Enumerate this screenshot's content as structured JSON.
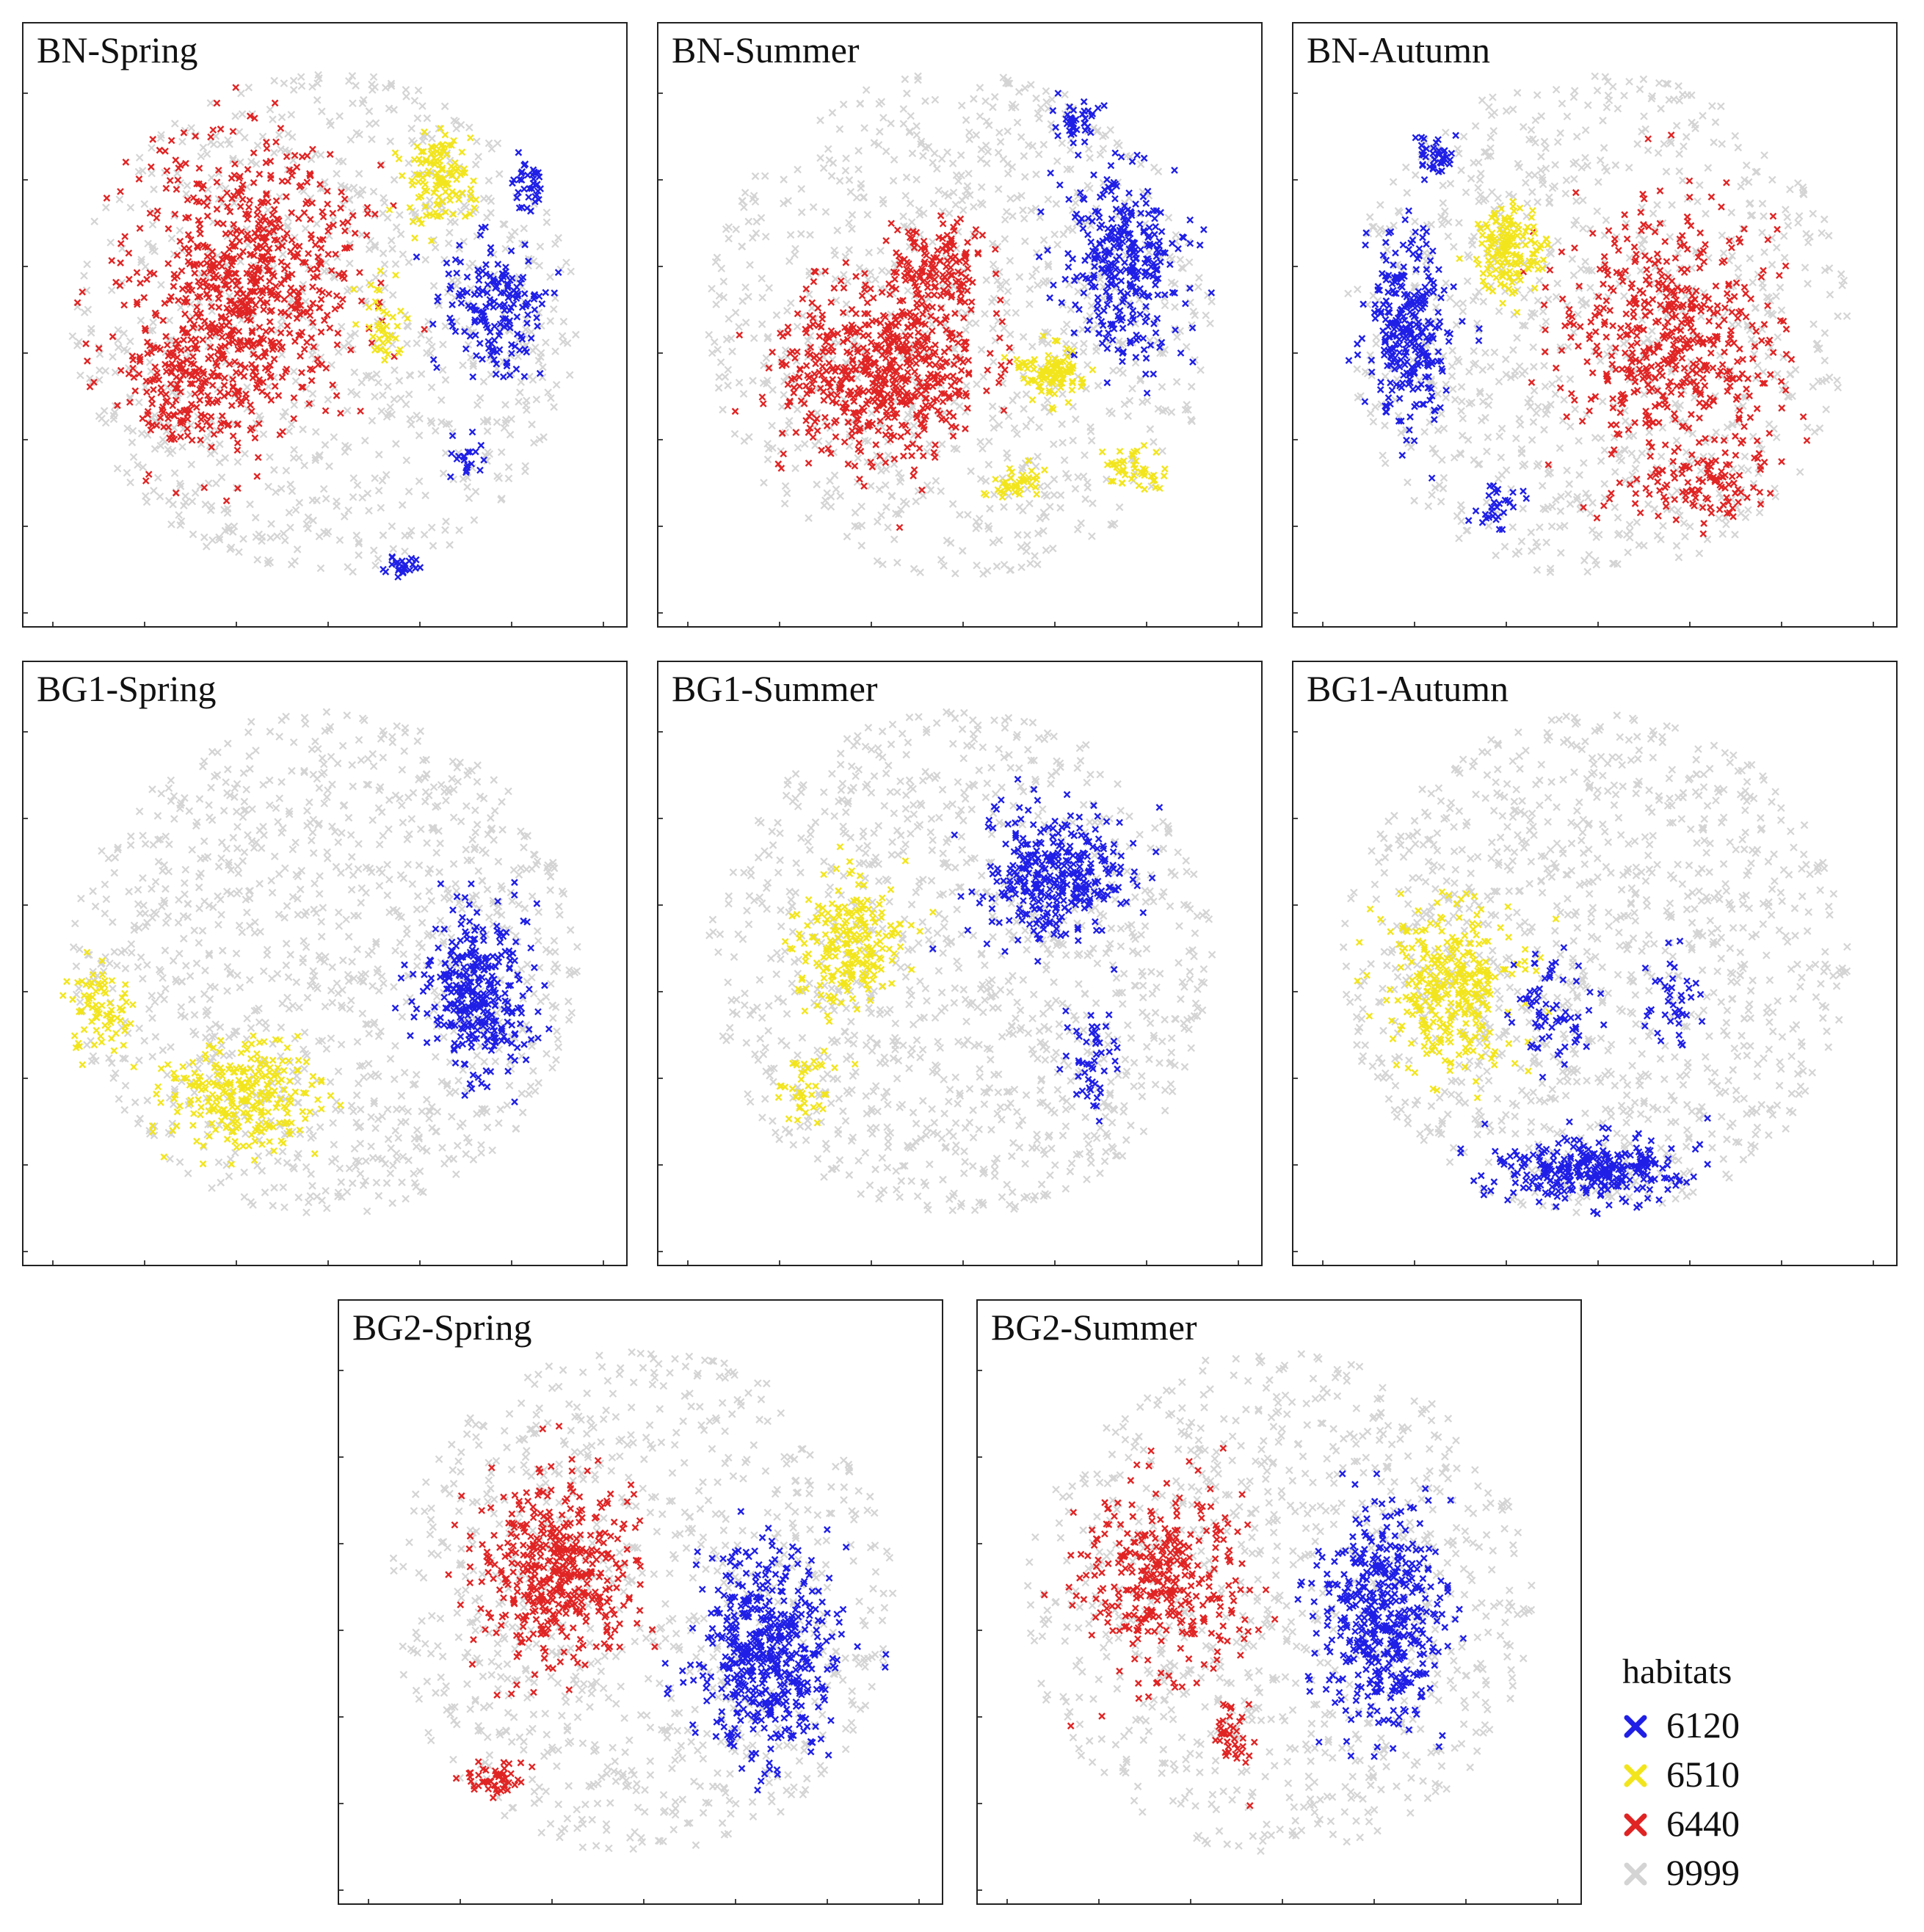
{
  "chart_data": {
    "type": "scatter",
    "marker": "x",
    "legend_title": "habitats",
    "legend_position": "bottom-right",
    "legend": [
      {
        "label": "6120",
        "color": "#1f1fe6"
      },
      {
        "label": "6510",
        "color": "#f2e51d"
      },
      {
        "label": "6440",
        "color": "#e02424"
      },
      {
        "label": "9999",
        "color": "#d4d4d4"
      }
    ],
    "panels": [
      {
        "title": "BN-Spring",
        "clusters": [
          {
            "habitat": "9999",
            "cx": 0.5,
            "cy": 0.5,
            "sx": 0.42,
            "sy": 0.42,
            "n": 900,
            "disc": true
          },
          {
            "habitat": "6440",
            "cx": 0.37,
            "cy": 0.42,
            "sx": 0.17,
            "sy": 0.2,
            "n": 700
          },
          {
            "habitat": "6440",
            "cx": 0.28,
            "cy": 0.6,
            "sx": 0.12,
            "sy": 0.12,
            "n": 200
          },
          {
            "habitat": "6510",
            "cx": 0.69,
            "cy": 0.26,
            "sx": 0.05,
            "sy": 0.07,
            "n": 120
          },
          {
            "habitat": "6510",
            "cx": 0.59,
            "cy": 0.5,
            "sx": 0.03,
            "sy": 0.07,
            "n": 40
          },
          {
            "habitat": "6120",
            "cx": 0.78,
            "cy": 0.47,
            "sx": 0.07,
            "sy": 0.1,
            "n": 180
          },
          {
            "habitat": "6120",
            "cx": 0.84,
            "cy": 0.27,
            "sx": 0.03,
            "sy": 0.06,
            "n": 40
          },
          {
            "habitat": "6120",
            "cx": 0.63,
            "cy": 0.9,
            "sx": 0.03,
            "sy": 0.02,
            "n": 25
          },
          {
            "habitat": "6120",
            "cx": 0.74,
            "cy": 0.72,
            "sx": 0.03,
            "sy": 0.03,
            "n": 20
          }
        ]
      },
      {
        "title": "BN-Summer",
        "clusters": [
          {
            "habitat": "9999",
            "cx": 0.5,
            "cy": 0.5,
            "sx": 0.42,
            "sy": 0.42,
            "n": 900,
            "disc": true
          },
          {
            "habitat": "6440",
            "cx": 0.37,
            "cy": 0.58,
            "sx": 0.15,
            "sy": 0.13,
            "n": 600
          },
          {
            "habitat": "6440",
            "cx": 0.46,
            "cy": 0.4,
            "sx": 0.08,
            "sy": 0.07,
            "n": 150
          },
          {
            "habitat": "6120",
            "cx": 0.77,
            "cy": 0.4,
            "sx": 0.09,
            "sy": 0.14,
            "n": 330
          },
          {
            "habitat": "6120",
            "cx": 0.7,
            "cy": 0.16,
            "sx": 0.03,
            "sy": 0.03,
            "n": 40
          },
          {
            "habitat": "6510",
            "cx": 0.65,
            "cy": 0.58,
            "sx": 0.05,
            "sy": 0.04,
            "n": 100
          },
          {
            "habitat": "6510",
            "cx": 0.59,
            "cy": 0.76,
            "sx": 0.04,
            "sy": 0.03,
            "n": 40
          },
          {
            "habitat": "6510",
            "cx": 0.79,
            "cy": 0.74,
            "sx": 0.05,
            "sy": 0.03,
            "n": 45
          }
        ]
      },
      {
        "title": "BN-Autumn",
        "clusters": [
          {
            "habitat": "9999",
            "cx": 0.5,
            "cy": 0.5,
            "sx": 0.42,
            "sy": 0.42,
            "n": 900,
            "disc": true
          },
          {
            "habitat": "6440",
            "cx": 0.62,
            "cy": 0.52,
            "sx": 0.17,
            "sy": 0.18,
            "n": 520
          },
          {
            "habitat": "6440",
            "cx": 0.69,
            "cy": 0.76,
            "sx": 0.1,
            "sy": 0.06,
            "n": 110
          },
          {
            "habitat": "6120",
            "cx": 0.19,
            "cy": 0.5,
            "sx": 0.06,
            "sy": 0.14,
            "n": 300
          },
          {
            "habitat": "6120",
            "cx": 0.23,
            "cy": 0.22,
            "sx": 0.03,
            "sy": 0.03,
            "n": 40
          },
          {
            "habitat": "6120",
            "cx": 0.34,
            "cy": 0.8,
            "sx": 0.04,
            "sy": 0.03,
            "n": 30
          },
          {
            "habitat": "6510",
            "cx": 0.36,
            "cy": 0.38,
            "sx": 0.05,
            "sy": 0.07,
            "n": 150
          }
        ]
      },
      {
        "title": "BG1-Spring",
        "clusters": [
          {
            "habitat": "9999",
            "cx": 0.5,
            "cy": 0.5,
            "sx": 0.42,
            "sy": 0.42,
            "n": 1100,
            "disc": true
          },
          {
            "habitat": "6120",
            "cx": 0.75,
            "cy": 0.55,
            "sx": 0.08,
            "sy": 0.12,
            "n": 340
          },
          {
            "habitat": "6510",
            "cx": 0.36,
            "cy": 0.72,
            "sx": 0.11,
            "sy": 0.08,
            "n": 260
          },
          {
            "habitat": "6510",
            "cx": 0.13,
            "cy": 0.58,
            "sx": 0.05,
            "sy": 0.07,
            "n": 80
          }
        ]
      },
      {
        "title": "BG1-Summer",
        "clusters": [
          {
            "habitat": "9999",
            "cx": 0.5,
            "cy": 0.5,
            "sx": 0.42,
            "sy": 0.42,
            "n": 1100,
            "disc": true
          },
          {
            "habitat": "6120",
            "cx": 0.66,
            "cy": 0.36,
            "sx": 0.11,
            "sy": 0.1,
            "n": 340
          },
          {
            "habitat": "6120",
            "cx": 0.72,
            "cy": 0.66,
            "sx": 0.04,
            "sy": 0.09,
            "n": 50
          },
          {
            "habitat": "6510",
            "cx": 0.31,
            "cy": 0.47,
            "sx": 0.08,
            "sy": 0.1,
            "n": 220
          },
          {
            "habitat": "6510",
            "cx": 0.24,
            "cy": 0.7,
            "sx": 0.04,
            "sy": 0.06,
            "n": 40
          }
        ]
      },
      {
        "title": "BG1-Autumn",
        "clusters": [
          {
            "habitat": "9999",
            "cx": 0.5,
            "cy": 0.5,
            "sx": 0.42,
            "sy": 0.42,
            "n": 1100,
            "disc": true
          },
          {
            "habitat": "6510",
            "cx": 0.26,
            "cy": 0.54,
            "sx": 0.1,
            "sy": 0.12,
            "n": 320
          },
          {
            "habitat": "6120",
            "cx": 0.49,
            "cy": 0.84,
            "sx": 0.14,
            "sy": 0.05,
            "n": 300
          },
          {
            "habitat": "6120",
            "cx": 0.43,
            "cy": 0.58,
            "sx": 0.06,
            "sy": 0.08,
            "n": 70
          },
          {
            "habitat": "6120",
            "cx": 0.63,
            "cy": 0.55,
            "sx": 0.04,
            "sy": 0.07,
            "n": 40
          }
        ]
      },
      {
        "title": "BG2-Spring",
        "clusters": [
          {
            "habitat": "9999",
            "cx": 0.5,
            "cy": 0.5,
            "sx": 0.42,
            "sy": 0.42,
            "n": 900,
            "disc": true
          },
          {
            "habitat": "6440",
            "cx": 0.36,
            "cy": 0.45,
            "sx": 0.12,
            "sy": 0.13,
            "n": 460
          },
          {
            "habitat": "6440",
            "cx": 0.26,
            "cy": 0.79,
            "sx": 0.05,
            "sy": 0.03,
            "n": 50
          },
          {
            "habitat": "6120",
            "cx": 0.71,
            "cy": 0.58,
            "sx": 0.1,
            "sy": 0.15,
            "n": 520
          }
        ]
      },
      {
        "title": "BG2-Summer",
        "clusters": [
          {
            "habitat": "9999",
            "cx": 0.5,
            "cy": 0.5,
            "sx": 0.42,
            "sy": 0.42,
            "n": 900,
            "disc": true
          },
          {
            "habitat": "6440",
            "cx": 0.31,
            "cy": 0.46,
            "sx": 0.12,
            "sy": 0.14,
            "n": 340
          },
          {
            "habitat": "6440",
            "cx": 0.42,
            "cy": 0.72,
            "sx": 0.03,
            "sy": 0.05,
            "n": 40
          },
          {
            "habitat": "6120",
            "cx": 0.67,
            "cy": 0.53,
            "sx": 0.09,
            "sy": 0.16,
            "n": 460
          }
        ]
      }
    ]
  }
}
